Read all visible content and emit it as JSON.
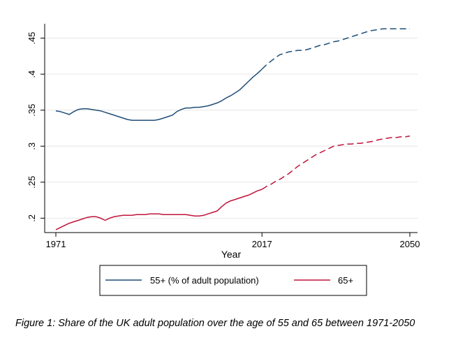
{
  "chart_data": {
    "type": "line",
    "xlabel": "Year",
    "ylabel": "",
    "xlim": [
      1971,
      2050
    ],
    "ylim": [
      0.18,
      0.47
    ],
    "x_ticks": [
      1971,
      2017,
      2050
    ],
    "x_tick_labels": [
      "1971",
      "2017",
      "2050"
    ],
    "y_ticks": [
      0.2,
      0.25,
      0.3,
      0.35,
      0.4,
      0.45
    ],
    "y_tick_labels": [
      ".2",
      ".25",
      ".3",
      ".35",
      ".4",
      ".45"
    ],
    "grid": "horizontal",
    "legend_position": "bottom",
    "projection_start_year": 2017,
    "series": [
      {
        "name": "55+ (% of adult population)",
        "color": "#1f4e79",
        "x": [
          1971,
          1972,
          1973,
          1974,
          1975,
          1976,
          1977,
          1978,
          1979,
          1980,
          1981,
          1982,
          1983,
          1984,
          1985,
          1986,
          1987,
          1988,
          1989,
          1990,
          1991,
          1992,
          1993,
          1994,
          1995,
          1996,
          1997,
          1998,
          1999,
          2000,
          2001,
          2002,
          2003,
          2004,
          2005,
          2006,
          2007,
          2008,
          2009,
          2010,
          2011,
          2012,
          2013,
          2014,
          2015,
          2016,
          2017,
          2018,
          2019,
          2020,
          2021,
          2022,
          2023,
          2024,
          2025,
          2026,
          2027,
          2028,
          2029,
          2030,
          2031,
          2032,
          2033,
          2034,
          2035,
          2036,
          2037,
          2038,
          2039,
          2040,
          2041,
          2042,
          2043,
          2044,
          2045,
          2046,
          2047,
          2048,
          2049,
          2050
        ],
        "values": [
          0.349,
          0.348,
          0.346,
          0.344,
          0.348,
          0.351,
          0.352,
          0.352,
          0.351,
          0.35,
          0.349,
          0.347,
          0.345,
          0.343,
          0.341,
          0.339,
          0.337,
          0.336,
          0.336,
          0.336,
          0.336,
          0.336,
          0.336,
          0.337,
          0.339,
          0.341,
          0.343,
          0.348,
          0.351,
          0.353,
          0.353,
          0.354,
          0.354,
          0.355,
          0.356,
          0.358,
          0.36,
          0.363,
          0.367,
          0.37,
          0.374,
          0.378,
          0.384,
          0.39,
          0.396,
          0.401,
          0.407,
          0.413,
          0.418,
          0.423,
          0.427,
          0.429,
          0.431,
          0.432,
          0.433,
          0.433,
          0.434,
          0.436,
          0.438,
          0.44,
          0.441,
          0.443,
          0.445,
          0.446,
          0.448,
          0.45,
          0.452,
          0.454,
          0.456,
          0.458,
          0.46,
          0.461,
          0.462,
          0.463,
          0.463,
          0.463,
          0.463,
          0.463,
          0.463,
          0.463
        ]
      },
      {
        "name": "65+",
        "color": "#c0143c",
        "x": [
          1971,
          1972,
          1973,
          1974,
          1975,
          1976,
          1977,
          1978,
          1979,
          1980,
          1981,
          1982,
          1983,
          1984,
          1985,
          1986,
          1987,
          1988,
          1989,
          1990,
          1991,
          1992,
          1993,
          1994,
          1995,
          1996,
          1997,
          1998,
          1999,
          2000,
          2001,
          2002,
          2003,
          2004,
          2005,
          2006,
          2007,
          2008,
          2009,
          2010,
          2011,
          2012,
          2013,
          2014,
          2015,
          2016,
          2017,
          2018,
          2019,
          2020,
          2021,
          2022,
          2023,
          2024,
          2025,
          2026,
          2027,
          2028,
          2029,
          2030,
          2031,
          2032,
          2033,
          2034,
          2035,
          2036,
          2037,
          2038,
          2039,
          2040,
          2041,
          2042,
          2043,
          2044,
          2045,
          2046,
          2047,
          2048,
          2049,
          2050
        ],
        "values": [
          0.184,
          0.187,
          0.19,
          0.193,
          0.195,
          0.197,
          0.199,
          0.201,
          0.202,
          0.202,
          0.2,
          0.197,
          0.2,
          0.202,
          0.203,
          0.204,
          0.204,
          0.204,
          0.205,
          0.205,
          0.205,
          0.206,
          0.206,
          0.206,
          0.205,
          0.205,
          0.205,
          0.205,
          0.205,
          0.205,
          0.204,
          0.203,
          0.203,
          0.204,
          0.206,
          0.208,
          0.21,
          0.216,
          0.221,
          0.224,
          0.226,
          0.228,
          0.23,
          0.232,
          0.235,
          0.238,
          0.24,
          0.244,
          0.247,
          0.251,
          0.254,
          0.258,
          0.262,
          0.267,
          0.272,
          0.276,
          0.28,
          0.284,
          0.288,
          0.291,
          0.294,
          0.297,
          0.3,
          0.301,
          0.302,
          0.303,
          0.303,
          0.304,
          0.304,
          0.305,
          0.306,
          0.307,
          0.309,
          0.31,
          0.311,
          0.312,
          0.312,
          0.313,
          0.313,
          0.314
        ]
      }
    ]
  },
  "caption": "Figure 1: Share of the UK adult population over the age of 55 and 65 between 1971-2050"
}
